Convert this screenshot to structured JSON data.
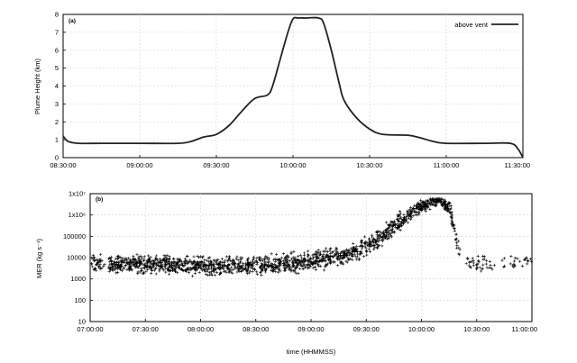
{
  "chart_data": [
    {
      "type": "line",
      "panel_label": "(a)",
      "ylabel": "Plume Height (km)",
      "xlim": [
        "08:30:00",
        "11:30:00"
      ],
      "ylim": [
        0,
        8
      ],
      "x_ticks": [
        "08:30:00",
        "09:00:00",
        "09:30:00",
        "10:00:00",
        "10:30:00",
        "11:00:00",
        "11:30:00"
      ],
      "y_ticks": [
        "0",
        "1",
        "2",
        "3",
        "4",
        "5",
        "6",
        "7",
        "8"
      ],
      "grid": true,
      "legend": "top-right",
      "series": [
        {
          "name": "above vent",
          "x": [
            "08:30:00",
            "08:32:00",
            "08:36:00",
            "08:45:00",
            "09:00:00",
            "09:15:00",
            "09:20:00",
            "09:25:00",
            "09:30:00",
            "09:35:00",
            "09:40:00",
            "09:45:00",
            "09:50:00",
            "09:52:00",
            "09:55:00",
            "09:58:00",
            "10:00:00",
            "10:02:00",
            "10:05:00",
            "10:10:00",
            "10:12:00",
            "10:15:00",
            "10:18:00",
            "10:20:00",
            "10:25:00",
            "10:30:00",
            "10:35:00",
            "10:45:00",
            "10:50:00",
            "10:55:00",
            "11:00:00",
            "11:15:00",
            "11:25:00",
            "11:28:00",
            "11:30:00"
          ],
          "y": [
            1.2,
            0.9,
            0.8,
            0.8,
            0.8,
            0.8,
            0.9,
            1.15,
            1.3,
            1.8,
            2.6,
            3.3,
            3.5,
            4.0,
            5.5,
            7.0,
            7.75,
            7.8,
            7.8,
            7.8,
            7.5,
            6.0,
            4.2,
            3.2,
            2.2,
            1.6,
            1.3,
            1.25,
            1.1,
            0.9,
            0.8,
            0.8,
            0.8,
            0.5,
            0.0
          ]
        }
      ]
    },
    {
      "type": "scatter",
      "panel_label": "(b)",
      "xlabel": "time (HHMMSS)",
      "ylabel": "MER (kg s⁻¹)",
      "xlim": [
        "07:00:00",
        "11:00:00"
      ],
      "ylim": [
        10,
        10000000
      ],
      "y_scale": "log",
      "x_ticks": [
        "07:00:00",
        "07:30:00",
        "08:00:00",
        "08:30:00",
        "09:00:00",
        "09:30:00",
        "10:00:00",
        "10:30:00",
        "11:00:00"
      ],
      "y_ticks": [
        "10",
        "100",
        "1000",
        "10000",
        "100000",
        "1x10⁶",
        "1x10⁷"
      ],
      "grid": true,
      "marker": "plus",
      "series": [
        {
          "trend_x": [
            "07:00:00",
            "07:30:00",
            "08:00:00",
            "08:30:00",
            "08:45:00",
            "09:00:00",
            "09:15:00",
            "09:25:00",
            "09:35:00",
            "09:45:00",
            "09:55:00",
            "10:05:00",
            "10:10:00",
            "10:15:00",
            "10:18:00",
            "10:20:00",
            "10:22:00",
            "10:30:00",
            "11:00:00"
          ],
          "trend_y": [
            5000,
            5000,
            4000,
            4000,
            5000,
            7000,
            11000,
            20000,
            60000,
            300000,
            1500000,
            4000000,
            5000000,
            2000000,
            200000,
            30000,
            8000,
            6000,
            6000
          ],
          "spread_decades": 0.35
        }
      ]
    }
  ]
}
